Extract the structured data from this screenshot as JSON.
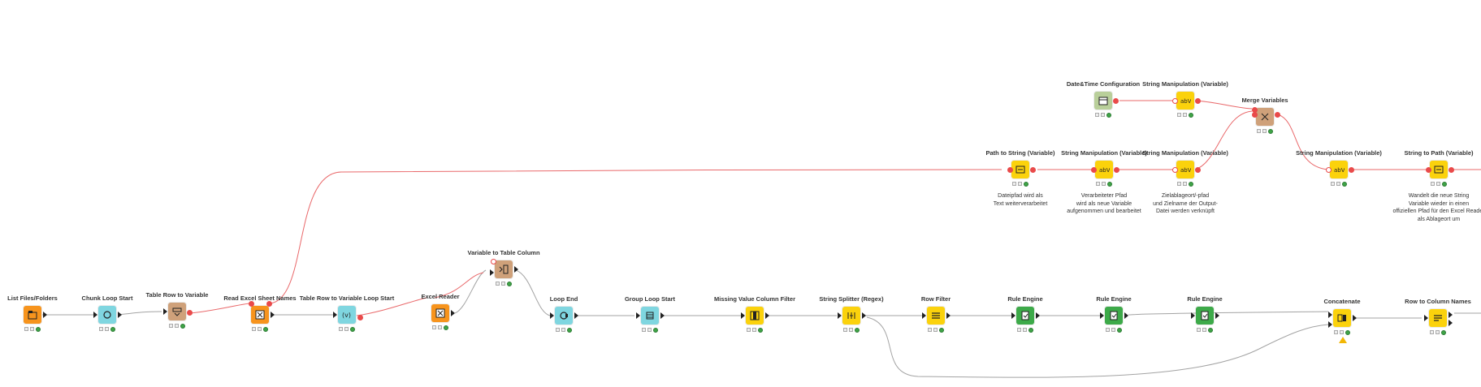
{
  "colors": {
    "data_wire": "#a3a3a3",
    "variable_wire": "#e9686a",
    "source_orange": "#f7941d",
    "manipulator_yellow": "#fbd20c",
    "loop_cyan": "#7fd6e0",
    "variable_tan": "#cfa17a",
    "config_green": "#b9cf9a",
    "rule_green": "#3daa49"
  },
  "nodes": [
    {
      "id": "list-files",
      "title": "List Files/Folders",
      "color": "#f7941d",
      "icon": "folder-list-icon",
      "annotation": ""
    },
    {
      "id": "chunk-loop-start",
      "title": "Chunk Loop Start",
      "color": "#7fd6e0",
      "icon": "loop-start-icon",
      "annotation": ""
    },
    {
      "id": "table-row-to-variable",
      "title": "Table Row to Variable",
      "color": "#cfa17a",
      "icon": "table-to-variable-icon",
      "annotation": ""
    },
    {
      "id": "read-excel-sheet-names",
      "title": "Read Excel Sheet Names",
      "color": "#f7941d",
      "icon": "excel-icon",
      "annotation": ""
    },
    {
      "id": "table-row-to-variable-loop-start",
      "title": "Table Row to Variable Loop Start",
      "color": "#7fd6e0",
      "icon": "variable-loop-icon",
      "annotation": ""
    },
    {
      "id": "excel-reader",
      "title": "Excel Reader",
      "color": "#f7941d",
      "icon": "excel-icon",
      "annotation": ""
    },
    {
      "id": "variable-to-table-column",
      "title": "Variable to Table Column",
      "color": "#cfa17a",
      "icon": "variable-to-column-icon",
      "annotation": ""
    },
    {
      "id": "loop-end",
      "title": "Loop End",
      "color": "#7fd6e0",
      "icon": "loop-end-icon",
      "annotation": ""
    },
    {
      "id": "group-loop-start",
      "title": "Group Loop Start",
      "color": "#7fd6e0",
      "icon": "group-loop-icon",
      "annotation": ""
    },
    {
      "id": "missing-value-column-filter",
      "title": "Missing Value Column Filter",
      "color": "#fbd20c",
      "icon": "column-filter-icon",
      "annotation": ""
    },
    {
      "id": "string-splitter-regex",
      "title": "String Splitter (Regex)",
      "color": "#fbd20c",
      "icon": "splitter-icon",
      "annotation": ""
    },
    {
      "id": "row-filter",
      "title": "Row Filter",
      "color": "#fbd20c",
      "icon": "row-filter-icon",
      "annotation": ""
    },
    {
      "id": "rule-engine-1",
      "title": "Rule Engine",
      "color": "#3daa49",
      "icon": "rule-icon",
      "annotation": ""
    },
    {
      "id": "rule-engine-2",
      "title": "Rule Engine",
      "color": "#3daa49",
      "icon": "rule-icon",
      "annotation": ""
    },
    {
      "id": "rule-engine-3",
      "title": "Rule Engine",
      "color": "#3daa49",
      "icon": "rule-icon",
      "annotation": ""
    },
    {
      "id": "concatenate",
      "title": "Concatenate",
      "color": "#fbd20c",
      "icon": "concatenate-icon",
      "annotation": "",
      "warning": true
    },
    {
      "id": "row-to-column-names",
      "title": "Row to Column Names",
      "color": "#fbd20c",
      "icon": "row-to-columns-icon",
      "annotation": ""
    },
    {
      "id": "datetime-configuration",
      "title": "Date&Time Configuration",
      "color": "#b9cf9a",
      "icon": "calendar-icon",
      "annotation": ""
    },
    {
      "id": "string-manipulation-var-top",
      "title": "String Manipulation (Variable)",
      "color": "#fbd20c",
      "icon": "string-var-icon",
      "annotation": ""
    },
    {
      "id": "merge-variables",
      "title": "Merge Variables",
      "color": "#cfa17a",
      "icon": "merge-icon",
      "annotation": ""
    },
    {
      "id": "path-to-string-variable",
      "title": "Path to String (Variable)",
      "color": "#fbd20c",
      "icon": "path-string-icon",
      "annotation": "Dateipfad wird als\nText weiterverarbeitet"
    },
    {
      "id": "string-manipulation-var-a",
      "title": "String Manipulation (Variable)",
      "color": "#fbd20c",
      "icon": "string-var-icon",
      "annotation": "Verarbeiteter Pfad\nwird als neue Variable\naufgenommen und bearbeitet"
    },
    {
      "id": "string-manipulation-var-b",
      "title": "String Manipulation (Variable)",
      "color": "#fbd20c",
      "icon": "string-var-icon",
      "annotation": "Zielablageort/-pfad\nund Zielname der Output-\nDatei werden verknüpft"
    },
    {
      "id": "string-manipulation-var-c",
      "title": "String Manipulation (Variable)",
      "color": "#fbd20c",
      "icon": "string-var-icon",
      "annotation": ""
    },
    {
      "id": "string-to-path-variable",
      "title": "String to Path (Variable)",
      "color": "#fbd20c",
      "icon": "path-string-icon",
      "annotation": "Wandelt die neue String\nVariable wieder in einen\noffiziellen Pfad für den Excel Reader\nals Ablageort um"
    }
  ]
}
